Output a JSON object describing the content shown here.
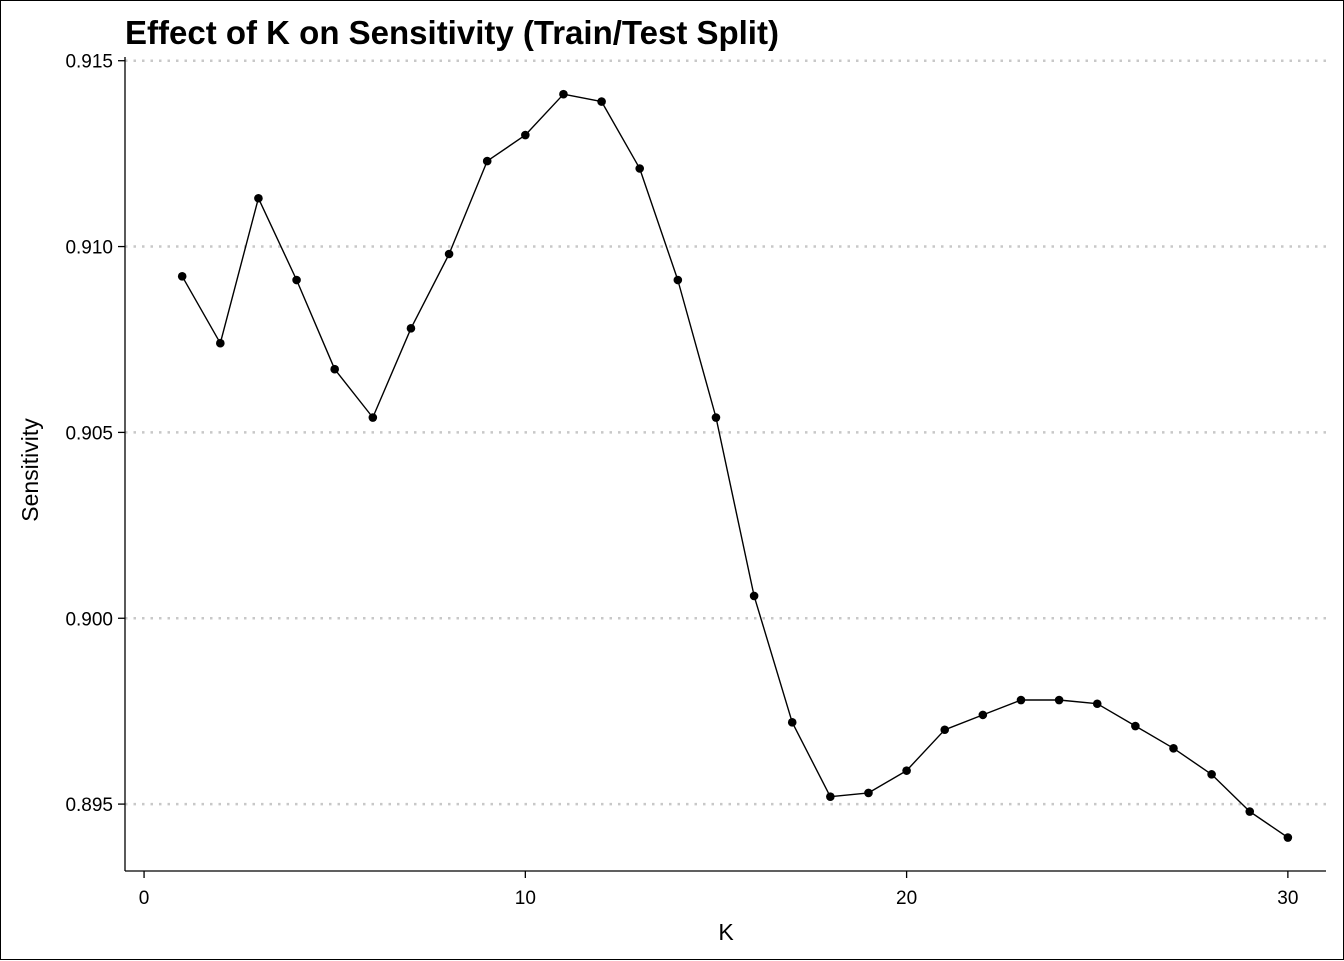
{
  "chart_data": {
    "type": "line",
    "title": "Effect of K on Sensitivity (Train/Test Split)",
    "xlabel": "K",
    "ylabel": "Sensitivity",
    "xlim": [
      -0.5,
      31.0
    ],
    "ylim": [
      0.8932,
      0.9151
    ],
    "x_ticks": [
      0,
      10,
      20,
      30
    ],
    "x_tick_labels": [
      "0",
      "10",
      "20",
      "30"
    ],
    "y_ticks": [
      0.895,
      0.9,
      0.905,
      0.91,
      0.915
    ],
    "y_tick_labels": [
      "0.895",
      "0.900",
      "0.905",
      "0.910",
      "0.915"
    ],
    "grid": {
      "horizontal": true,
      "vertical": false,
      "style": "dotted"
    },
    "legend": "none",
    "colors": {
      "line": "#000000",
      "point": "#000000",
      "grid": "#c8c8c8",
      "background": "#ffffff"
    },
    "series": [
      {
        "x": [
          1,
          2,
          3,
          4,
          5,
          6,
          7,
          8,
          9,
          10,
          11,
          12,
          13,
          14,
          15,
          16,
          17,
          18,
          19,
          20,
          21,
          22,
          23,
          24,
          25,
          26,
          27,
          28,
          29,
          30
        ],
        "values": [
          0.9092,
          0.9074,
          0.9113,
          0.9091,
          0.9067,
          0.9054,
          0.9078,
          0.9098,
          0.9123,
          0.913,
          0.9141,
          0.9139,
          0.9121,
          0.9091,
          0.9054,
          0.9006,
          0.8972,
          0.8952,
          0.8953,
          0.8959,
          0.897,
          0.8974,
          0.8978,
          0.8978,
          0.8977,
          0.8971,
          0.8965,
          0.8958,
          0.8948,
          0.8941
        ]
      }
    ]
  }
}
